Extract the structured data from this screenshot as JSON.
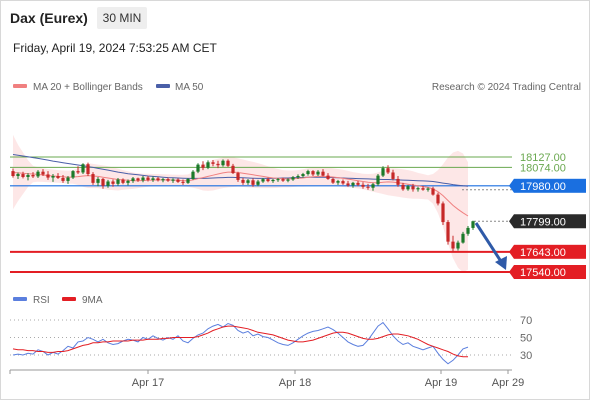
{
  "header": {
    "instrument": "Dax (Eurex)",
    "interval": "30 MIN",
    "datetime": "Friday, April 19, 2024 7:53:25 AM CET"
  },
  "legend": {
    "ma20": "MA 20 + Bollinger Bands",
    "ma50": "MA 50",
    "credit": "Research © 2024 Trading Central",
    "rsi": "RSI",
    "ma9": "9MA"
  },
  "colors": {
    "ma20": "#f08080",
    "bands": "#fbd3d3",
    "ma50": "#4a5fa8",
    "up": "#1c7a2a",
    "down": "#c62828",
    "level_green": "#6aa84f",
    "support": "#e31e24",
    "pivot": "#1a6fe0",
    "last": "#2a2a2a",
    "rsi": "#5b7fde",
    "ma9": "#e31e24"
  },
  "chart_data": [
    {
      "type": "candlestick",
      "x_ticks": [
        "Apr 17",
        "Apr 18",
        "Apr 19",
        "Apr 29"
      ],
      "ylim": [
        17460,
        18300
      ],
      "levels": [
        {
          "value": 18127.0,
          "label": "18127.00",
          "style": "green-line"
        },
        {
          "value": 18074.0,
          "label": "18074.00",
          "style": "green-line"
        },
        {
          "value": 17980.0,
          "label": "17980.00",
          "style": "pivot"
        },
        {
          "value": 17799.0,
          "label": "17799.00",
          "style": "last-price"
        },
        {
          "value": 17643.0,
          "label": "17643.00",
          "style": "support"
        },
        {
          "value": 17540.0,
          "label": "17540.00",
          "style": "support"
        }
      ],
      "candles": [
        [
          18055,
          18068,
          18022,
          18030
        ],
        [
          18030,
          18048,
          18015,
          18040
        ],
        [
          18040,
          18052,
          18018,
          18025
        ],
        [
          18025,
          18045,
          18008,
          18035
        ],
        [
          18035,
          18050,
          18020,
          18028
        ],
        [
          18028,
          18060,
          18020,
          18052
        ],
        [
          18052,
          18065,
          18030,
          18038
        ],
        [
          18038,
          18055,
          18010,
          18022
        ],
        [
          18022,
          18040,
          18000,
          18030
        ],
        [
          18030,
          18045,
          18015,
          18020
        ],
        [
          18020,
          18035,
          17995,
          18005
        ],
        [
          18005,
          18030,
          17990,
          18022
        ],
        [
          18022,
          18060,
          18015,
          18055
        ],
        [
          18055,
          18080,
          18040,
          18048
        ],
        [
          18048,
          18095,
          18040,
          18090
        ],
        [
          18090,
          18098,
          18030,
          18040
        ],
        [
          18040,
          18050,
          17985,
          17995
        ],
        [
          17995,
          18025,
          17978,
          18015
        ],
        [
          18015,
          18020,
          17965,
          17980
        ],
        [
          17980,
          18010,
          17970,
          18002
        ],
        [
          18002,
          18012,
          17975,
          17990
        ],
        [
          17990,
          18020,
          17980,
          18012
        ],
        [
          18012,
          18018,
          17988,
          17995
        ],
        [
          17995,
          18012,
          17982,
          18005
        ],
        [
          18005,
          18025,
          17995,
          18018
        ],
        [
          18018,
          18022,
          18000,
          18008
        ],
        [
          18008,
          18030,
          17998,
          18022
        ],
        [
          18022,
          18030,
          18002,
          18010
        ],
        [
          18010,
          18028,
          18000,
          18018
        ],
        [
          18018,
          18025,
          18002,
          18008
        ],
        [
          18008,
          18020,
          17998,
          18014
        ],
        [
          18014,
          18022,
          18000,
          18006
        ],
        [
          18006,
          18018,
          17995,
          18012
        ],
        [
          18012,
          18018,
          17995,
          18000
        ],
        [
          18000,
          18012,
          17985,
          17995
        ],
        [
          17995,
          18020,
          17990,
          18015
        ],
        [
          18015,
          18060,
          18010,
          18052
        ],
        [
          18052,
          18095,
          18045,
          18088
        ],
        [
          18088,
          18105,
          18060,
          18072
        ],
        [
          18072,
          18110,
          18065,
          18100
        ],
        [
          18100,
          18112,
          18080,
          18092
        ],
        [
          18092,
          18108,
          18070,
          18085
        ],
        [
          18085,
          18115,
          18078,
          18108
        ],
        [
          18108,
          18115,
          18075,
          18082
        ],
        [
          18082,
          18092,
          18040,
          18045
        ],
        [
          18045,
          18052,
          18000,
          18010
        ],
        [
          18010,
          18020,
          17985,
          17995
        ],
        [
          17995,
          18015,
          17985,
          18008
        ],
        [
          18008,
          18018,
          17975,
          17985
        ],
        [
          17985,
          18010,
          17978,
          18002
        ],
        [
          18002,
          18020,
          17995,
          18014
        ],
        [
          18014,
          18022,
          17998,
          18004
        ],
        [
          18004,
          18015,
          17995,
          18010
        ],
        [
          18010,
          18020,
          18000,
          18014
        ],
        [
          18014,
          18022,
          18000,
          18006
        ],
        [
          18006,
          18018,
          17998,
          18012
        ],
        [
          18012,
          18030,
          18005,
          18024
        ],
        [
          18024,
          18038,
          18015,
          18030
        ],
        [
          18030,
          18046,
          18022,
          18040
        ],
        [
          18040,
          18062,
          18032,
          18055
        ],
        [
          18055,
          18060,
          18030,
          18038
        ],
        [
          18038,
          18060,
          18030,
          18052
        ],
        [
          18052,
          18065,
          18028,
          18032
        ],
        [
          18032,
          18045,
          18010,
          18015
        ],
        [
          18015,
          18022,
          17990,
          17996
        ],
        [
          17996,
          18010,
          17985,
          18004
        ],
        [
          18004,
          18012,
          17985,
          17992
        ],
        [
          17992,
          18005,
          17975,
          17982
        ],
        [
          17982,
          18000,
          17970,
          17995
        ],
        [
          17995,
          18005,
          17978,
          17985
        ],
        [
          17985,
          17998,
          17965,
          17975
        ],
        [
          17975,
          17990,
          17960,
          17970
        ],
        [
          17970,
          17995,
          17955,
          17988
        ],
        [
          17988,
          18040,
          17980,
          18032
        ],
        [
          18032,
          18080,
          18025,
          18070
        ],
        [
          18070,
          18085,
          18040,
          18048
        ],
        [
          18048,
          18062,
          18008,
          18015
        ],
        [
          18015,
          18030,
          17975,
          17985
        ],
        [
          17985,
          17995,
          17955,
          17962
        ],
        [
          17962,
          17985,
          17955,
          17978
        ],
        [
          17978,
          17990,
          17950,
          17962
        ],
        [
          17962,
          17975,
          17950,
          17968
        ],
        [
          17968,
          17980,
          17955,
          17960
        ],
        [
          17960,
          17972,
          17950,
          17966
        ],
        [
          17966,
          17975,
          17930,
          17935
        ],
        [
          17935,
          17945,
          17880,
          17890
        ],
        [
          17890,
          17900,
          17780,
          17795
        ],
        [
          17795,
          17805,
          17680,
          17695
        ],
        [
          17695,
          17725,
          17640,
          17660
        ],
        [
          17660,
          17700,
          17650,
          17690
        ],
        [
          17690,
          17745,
          17685,
          17735
        ],
        [
          17735,
          17775,
          17725,
          17765
        ],
        [
          17765,
          17802,
          17755,
          17799
        ]
      ],
      "ma20": [
        18048,
        18046,
        18044,
        18042,
        18040,
        18038,
        18035,
        18032,
        18030,
        18028,
        18026,
        18024,
        18025,
        18027,
        18030,
        18032,
        18030,
        18028,
        18024,
        18020,
        18016,
        18012,
        18010,
        18008,
        18006,
        18006,
        18007,
        18008,
        18009,
        18010,
        18010,
        18010,
        18009,
        18008,
        18006,
        18006,
        18010,
        18016,
        18022,
        18028,
        18034,
        18040,
        18046,
        18050,
        18050,
        18048,
        18044,
        18040,
        18036,
        18032,
        18028,
        18024,
        18020,
        18018,
        18016,
        18015,
        18016,
        18018,
        18020,
        18024,
        18026,
        18028,
        18028,
        18027,
        18025,
        18022,
        18018,
        18014,
        18010,
        18006,
        18002,
        17998,
        17996,
        17996,
        17998,
        18000,
        17999,
        17996,
        17992,
        17988,
        17984,
        17980,
        17976,
        17972,
        17964,
        17950,
        17930,
        17905,
        17880,
        17860,
        17842,
        17826
      ],
      "bb_upper": [
        18240,
        18190,
        18150,
        18110,
        18082,
        18075,
        18070,
        18066,
        18063,
        18060,
        18058,
        18057,
        18060,
        18070,
        18085,
        18095,
        18092,
        18088,
        18084,
        18080,
        18074,
        18068,
        18060,
        18054,
        18048,
        18044,
        18042,
        18041,
        18040,
        18040,
        18039,
        18038,
        18037,
        18036,
        18036,
        18038,
        18050,
        18068,
        18088,
        18102,
        18112,
        18118,
        18124,
        18128,
        18126,
        18120,
        18114,
        18108,
        18102,
        18096,
        18088,
        18080,
        18072,
        18066,
        18060,
        18058,
        18058,
        18060,
        18064,
        18070,
        18074,
        18076,
        18076,
        18074,
        18070,
        18066,
        18062,
        18056,
        18050,
        18046,
        18042,
        18040,
        18042,
        18048,
        18058,
        18068,
        18070,
        18068,
        18064,
        18060,
        18054,
        18046,
        18040,
        18034,
        18040,
        18060,
        18090,
        18125,
        18150,
        18158,
        18145,
        18100
      ],
      "bb_lower": [
        17860,
        17902,
        17938,
        17974,
        17998,
        18001,
        18000,
        17998,
        17997,
        17996,
        17994,
        17991,
        17990,
        17984,
        17975,
        17969,
        17968,
        17968,
        17964,
        17960,
        17958,
        17956,
        17960,
        17962,
        17964,
        17968,
        17972,
        17975,
        17978,
        17980,
        17981,
        17982,
        17981,
        17980,
        17976,
        17974,
        17970,
        17964,
        17956,
        17954,
        17956,
        17962,
        17968,
        17972,
        17974,
        17976,
        17974,
        17972,
        17970,
        17968,
        17968,
        17968,
        17968,
        17970,
        17972,
        17972,
        17974,
        17976,
        17976,
        17978,
        17978,
        17980,
        17980,
        17980,
        17980,
        17978,
        17974,
        17972,
        17970,
        17966,
        17962,
        17956,
        17950,
        17944,
        17938,
        17932,
        17928,
        17924,
        17920,
        17916,
        17914,
        17914,
        17912,
        17910,
        17888,
        17840,
        17770,
        17685,
        17610,
        17562,
        17539,
        17552
      ],
      "ma50": [
        18140,
        18136,
        18132,
        18128,
        18124,
        18120,
        18116,
        18111,
        18106,
        18102,
        18098,
        18094,
        18090,
        18086,
        18082,
        18078,
        18074,
        18069,
        18064,
        18060,
        18055,
        18050,
        18046,
        18042,
        18039,
        18036,
        18033,
        18030,
        18028,
        18026,
        18024,
        18022,
        18021,
        18020,
        18019,
        18018,
        18018,
        18018,
        18018,
        18019,
        18020,
        18021,
        18022,
        18023,
        18023,
        18022,
        18021,
        18020,
        18019,
        18018,
        18018,
        18018,
        18018,
        18019,
        18020,
        18020,
        18021,
        18022,
        18023,
        18024,
        18024,
        18024,
        18024,
        18023,
        18022,
        18021,
        18020,
        18019,
        18018,
        18017,
        18016,
        18015,
        18014,
        18013,
        18012,
        18012,
        18011,
        18010,
        18009,
        18008,
        18007,
        18006,
        18005,
        18004,
        18002,
        17998,
        17994,
        17990,
        17986,
        17983,
        17980,
        17978
      ],
      "rsi": {
        "ylim": [
          15,
          80
        ],
        "ticks": [
          70,
          50,
          30
        ],
        "rsi": [
          30,
          31,
          30,
          32,
          31,
          36,
          34,
          30,
          33,
          31,
          35,
          40,
          38,
          45,
          46,
          50,
          48,
          45,
          48,
          44,
          42,
          43,
          46,
          48,
          47,
          45,
          50,
          48,
          52,
          49,
          47,
          50,
          48,
          52,
          46,
          44,
          49,
          53,
          55,
          60,
          63,
          65,
          62,
          66,
          64,
          58,
          55,
          57,
          52,
          54,
          51,
          50,
          47,
          44,
          42,
          41,
          44,
          48,
          52,
          55,
          57,
          58,
          60,
          62,
          59,
          55,
          50,
          45,
          42,
          40,
          41,
          47,
          55,
          63,
          67,
          60,
          52,
          46,
          42,
          44,
          40,
          38,
          36,
          38,
          40,
          32,
          25,
          20,
          24,
          30,
          37,
          39
        ],
        "ma9": [
          37,
          36,
          36,
          35,
          35,
          34,
          34,
          33,
          33,
          34,
          34,
          35,
          37,
          39,
          41,
          42,
          44,
          44,
          45,
          45,
          46,
          46,
          46,
          46,
          47,
          47,
          47,
          48,
          48,
          48,
          49,
          49,
          50,
          50,
          50,
          50,
          50,
          51,
          53,
          55,
          58,
          60,
          62,
          63,
          63,
          62,
          61,
          60,
          58,
          56,
          55,
          54,
          53,
          51,
          49,
          47,
          46,
          45,
          45,
          46,
          47,
          49,
          51,
          53,
          55,
          56,
          56,
          55,
          53,
          51,
          49,
          48,
          48,
          49,
          51,
          53,
          54,
          54,
          53,
          52,
          50,
          48,
          45,
          42,
          40,
          38,
          36,
          34,
          31,
          29,
          28,
          28
        ]
      }
    }
  ]
}
